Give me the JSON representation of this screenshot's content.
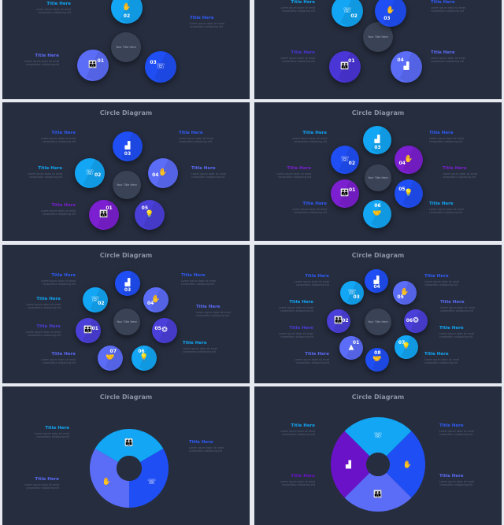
{
  "slides": [
    {
      "title": "",
      "center_text": "Your Title Here",
      "circles": [
        {
          "num": "02",
          "color": "#12a6f5",
          "icon": "hand-coin-icon"
        },
        {
          "num": "01",
          "color": "#5b6cf7",
          "icon": "people-icon"
        },
        {
          "num": "03",
          "color": "#1f4ef5",
          "icon": "phone-clock-icon"
        }
      ],
      "labels": [
        {
          "title": "Title Here",
          "body": "Lorem ipsum dolor sit amet consectetur adipiscing elit",
          "color": "#12a6f5"
        },
        {
          "title": "Title Here",
          "body": "Lorem ipsum dolor sit amet consectetur adipiscing elit",
          "color": "#2f5cf7"
        },
        {
          "title": "Title Here",
          "body": "Lorem ipsum dolor sit amet consectetur adipiscing elit",
          "color": "#5b6cf7"
        }
      ]
    },
    {
      "title": "",
      "center_text": "Your Title Here",
      "circles": [
        {
          "num": "02",
          "color": "#12a6f5",
          "icon": "phone-clock-icon"
        },
        {
          "num": "03",
          "color": "#1f4ef5",
          "icon": "hand-coin-icon"
        },
        {
          "num": "01",
          "color": "#4a35d6",
          "icon": "people-icon"
        },
        {
          "num": "04",
          "color": "#5b6cf7",
          "icon": "chart-icon"
        }
      ],
      "labels": [
        {
          "title": "Title Here",
          "body": "Lorem ipsum dolor sit amet consectetur adipiscing elit",
          "color": "#12a6f5"
        },
        {
          "title": "Title Here",
          "body": "Lorem ipsum dolor sit amet consectetur adipiscing elit",
          "color": "#2f5cf7"
        },
        {
          "title": "Title Here",
          "body": "Lorem ipsum dolor sit amet consectetur adipiscing elit",
          "color": "#4a35d6"
        },
        {
          "title": "Title Here",
          "body": "Lorem ipsum dolor sit amet consectetur adipiscing elit",
          "color": "#5b6cf7"
        }
      ]
    },
    {
      "title": "Circle Diagram",
      "center_text": "Your Title Here",
      "circles": [
        {
          "num": "03",
          "color": "#1f4ef5",
          "icon": "chart-icon"
        },
        {
          "num": "02",
          "color": "#12a6f5",
          "icon": "phone-clock-icon"
        },
        {
          "num": "04",
          "color": "#5b6cf7",
          "icon": "hand-coin-icon"
        },
        {
          "num": "01",
          "color": "#7b1fd0",
          "icon": "people-icon"
        },
        {
          "num": "05",
          "color": "#4a3fd8",
          "icon": "bulb-icon"
        }
      ],
      "labels": [
        {
          "title": "Title Here",
          "body": "Lorem ipsum dolor sit amet consectetur adipiscing elit",
          "color": "#2f5cf7"
        },
        {
          "title": "Title Here",
          "body": "Lorem ipsum dolor sit amet consectetur adipiscing elit",
          "color": "#2f5cf7"
        },
        {
          "title": "Title Here",
          "body": "Lorem ipsum dolor sit amet consectetur adipiscing elit",
          "color": "#12a6f5"
        },
        {
          "title": "Title Here",
          "body": "Lorem ipsum dolor sit amet consectetur adipiscing elit",
          "color": "#5b6cf7"
        },
        {
          "title": "Title Here",
          "body": "Lorem ipsum dolor sit amet consectetur adipiscing elit",
          "color": "#7b1fd0"
        }
      ]
    },
    {
      "title": "Circle Diagram",
      "center_text": "Your Title Here",
      "circles": [
        {
          "num": "03",
          "color": "#12a6f5",
          "icon": "chart-icon"
        },
        {
          "num": "02",
          "color": "#1f4ef5",
          "icon": "phone-clock-icon"
        },
        {
          "num": "04",
          "color": "#7b1fd0",
          "icon": "hand-coin-icon"
        },
        {
          "num": "01",
          "color": "#7b1fd0",
          "icon": "people-icon"
        },
        {
          "num": "05",
          "color": "#1f4ef5",
          "icon": "bulb-icon"
        },
        {
          "num": "06",
          "color": "#12a6f5",
          "icon": "handshake-icon"
        }
      ],
      "labels": [
        {
          "title": "Title Here",
          "body": "Lorem ipsum dolor sit amet consectetur adipiscing elit",
          "color": "#12a6f5"
        },
        {
          "title": "Title Here",
          "body": "Lorem ipsum dolor sit amet consectetur adipiscing elit",
          "color": "#2f5cf7"
        },
        {
          "title": "Title Here",
          "body": "Lorem ipsum dolor sit amet consectetur adipiscing elit",
          "color": "#7b1fd0"
        },
        {
          "title": "Title Here",
          "body": "Lorem ipsum dolor sit amet consectetur adipiscing elit",
          "color": "#7b1fd0"
        },
        {
          "title": "Title Here",
          "body": "Lorem ipsum dolor sit amet consectetur adipiscing elit",
          "color": "#2f5cf7"
        },
        {
          "title": "Title Here",
          "body": "Lorem ipsum dolor sit amet consectetur adipiscing elit",
          "color": "#12a6f5"
        }
      ]
    },
    {
      "title": "Circle Diagram",
      "center_text": "Your Title Here",
      "circles": [
        {
          "num": "03",
          "color": "#1f4ef5",
          "icon": "chart-icon"
        },
        {
          "num": "02",
          "color": "#12a6f5",
          "icon": "phone-clock-icon"
        },
        {
          "num": "04",
          "color": "#5b6cf7",
          "icon": "hand-coin-icon"
        },
        {
          "num": "01",
          "color": "#4a3fd8",
          "icon": "people-icon"
        },
        {
          "num": "05",
          "color": "#4a3fd8",
          "icon": "brain-icon"
        },
        {
          "num": "07",
          "color": "#5b6cf7",
          "icon": "handshake-icon"
        },
        {
          "num": "06",
          "color": "#12a6f5",
          "icon": "bulb-icon"
        }
      ],
      "labels": [
        {
          "title": "Title Here",
          "body": "Lorem ipsum dolor sit amet consectetur adipiscing elit",
          "color": "#2f5cf7"
        },
        {
          "title": "Title Here",
          "body": "Lorem ipsum dolor sit amet consectetur adipiscing elit",
          "color": "#12a6f5"
        },
        {
          "title": "Title Here",
          "body": "Lorem ipsum dolor sit amet consectetur adipiscing elit",
          "color": "#4a3fd8"
        },
        {
          "title": "Title Here",
          "body": "Lorem ipsum dolor sit amet consectetur adipiscing elit",
          "color": "#5b6cf7"
        },
        {
          "title": "Title Here",
          "body": "Lorem ipsum dolor sit amet consectetur adipiscing elit",
          "color": "#2f5cf7"
        },
        {
          "title": "Title Here",
          "body": "Lorem ipsum dolor sit amet consectetur adipiscing elit",
          "color": "#5b6cf7"
        },
        {
          "title": "Title Here",
          "body": "Lorem ipsum dolor sit amet consectetur adipiscing elit",
          "color": "#12a6f5"
        }
      ]
    },
    {
      "title": "Circle Diagram",
      "center_text": "Your Title Here",
      "circles": [
        {
          "num": "04",
          "color": "#1f4ef5",
          "icon": "chart-icon"
        },
        {
          "num": "03",
          "color": "#12a6f5",
          "icon": "phone-clock-icon"
        },
        {
          "num": "05",
          "color": "#5b6cf7",
          "icon": "hand-coin-icon"
        },
        {
          "num": "02",
          "color": "#4a3fd8",
          "icon": "people-icon"
        },
        {
          "num": "06",
          "color": "#4a3fd8",
          "icon": "brain-icon"
        },
        {
          "num": "01",
          "color": "#5b6cf7",
          "icon": "rocket-icon"
        },
        {
          "num": "07",
          "color": "#12a6f5",
          "icon": "bulb-icon"
        },
        {
          "num": "08",
          "color": "#1f4ef5",
          "icon": "handshake-icon"
        }
      ],
      "labels": [
        {
          "title": "Title Here",
          "body": "Lorem ipsum dolor sit amet consectetur adipiscing elit",
          "color": "#2f5cf7"
        },
        {
          "title": "Title Here",
          "body": "Lorem ipsum dolor sit amet consectetur adipiscing elit",
          "color": "#12a6f5"
        },
        {
          "title": "Title Here",
          "body": "Lorem ipsum dolor sit amet consectetur adipiscing elit",
          "color": "#4a3fd8"
        },
        {
          "title": "Title Here",
          "body": "Lorem ipsum dolor sit amet consectetur adipiscing elit",
          "color": "#5b6cf7"
        },
        {
          "title": "Title Here",
          "body": "Lorem ipsum dolor sit amet consectetur adipiscing elit",
          "color": "#2f5cf7"
        },
        {
          "title": "Title Here",
          "body": "Lorem ipsum dolor sit amet consectetur adipiscing elit",
          "color": "#5b6cf7"
        },
        {
          "title": "Title Here",
          "body": "Lorem ipsum dolor sit amet consectetur adipiscing elit",
          "color": "#12a6f5"
        },
        {
          "title": "Title Here",
          "body": "Lorem ipsum dolor sit amet consectetur adipiscing elit",
          "color": "#12a6f5"
        }
      ]
    },
    {
      "title": "Circle Diagram",
      "center_text": "",
      "segments": [
        {
          "color": "#12a6f5",
          "icon": "people-icon"
        },
        {
          "color": "#1f4ef5",
          "icon": "phone-clock-icon"
        },
        {
          "color": "#5b6cf7",
          "icon": "hand-coin-icon"
        }
      ],
      "labels": [
        {
          "title": "Title Here",
          "body": "Lorem ipsum dolor sit amet consectetur adipiscing elit",
          "color": "#12a6f5"
        },
        {
          "title": "Title Here",
          "body": "Lorem ipsum dolor sit amet consectetur adipiscing elit",
          "color": "#2f5cf7"
        },
        {
          "title": "Title Here",
          "body": "Lorem ipsum dolor sit amet consectetur adipiscing elit",
          "color": "#5b6cf7"
        }
      ]
    },
    {
      "title": "Circle Diagram",
      "center_text": "",
      "segments": [
        {
          "color": "#12a6f5",
          "icon": "phone-clock-icon"
        },
        {
          "color": "#1f4ef5",
          "icon": "hand-coin-icon"
        },
        {
          "color": "#5b6cf7",
          "icon": "people-icon"
        },
        {
          "color": "#6a12c8",
          "icon": "chart-icon"
        }
      ],
      "labels": [
        {
          "title": "Title Here",
          "body": "Lorem ipsum dolor sit amet consectetur adipiscing elit",
          "color": "#12a6f5"
        },
        {
          "title": "Title Here",
          "body": "Lorem ipsum dolor sit amet consectetur adipiscing elit",
          "color": "#2f5cf7"
        },
        {
          "title": "Title Here",
          "body": "Lorem ipsum dolor sit amet consectetur adipiscing elit",
          "color": "#6a12c8"
        },
        {
          "title": "Title Here",
          "body": "Lorem ipsum dolor sit amet consectetur adipiscing elit",
          "color": "#5b6cf7"
        }
      ]
    }
  ]
}
